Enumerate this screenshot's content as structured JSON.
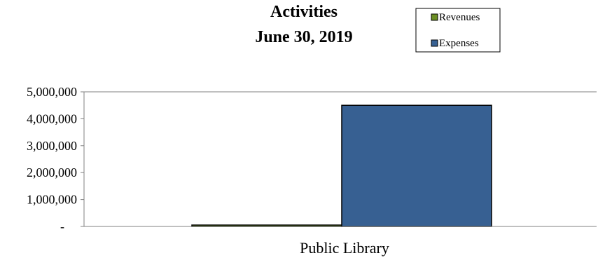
{
  "chart_data": {
    "type": "bar",
    "title": "Activities",
    "subtitle": "June 30, 2019",
    "categories": [
      "Public Library"
    ],
    "series": [
      {
        "name": "Revenues",
        "values": [
          50000
        ],
        "color": "#6b8e23"
      },
      {
        "name": "Expenses",
        "values": [
          4500000
        ],
        "color": "#376092"
      }
    ],
    "ylim": [
      0,
      5000000
    ],
    "y_ticks": [
      {
        "value": 0,
        "label": "-"
      },
      {
        "value": 1000000,
        "label": "1,000,000"
      },
      {
        "value": 2000000,
        "label": "2,000,000"
      },
      {
        "value": 3000000,
        "label": "3,000,000"
      },
      {
        "value": 4000000,
        "label": "4,000,000"
      },
      {
        "value": 5000000,
        "label": "5,000,000"
      }
    ],
    "grid": false,
    "legend_position": "top-right"
  }
}
